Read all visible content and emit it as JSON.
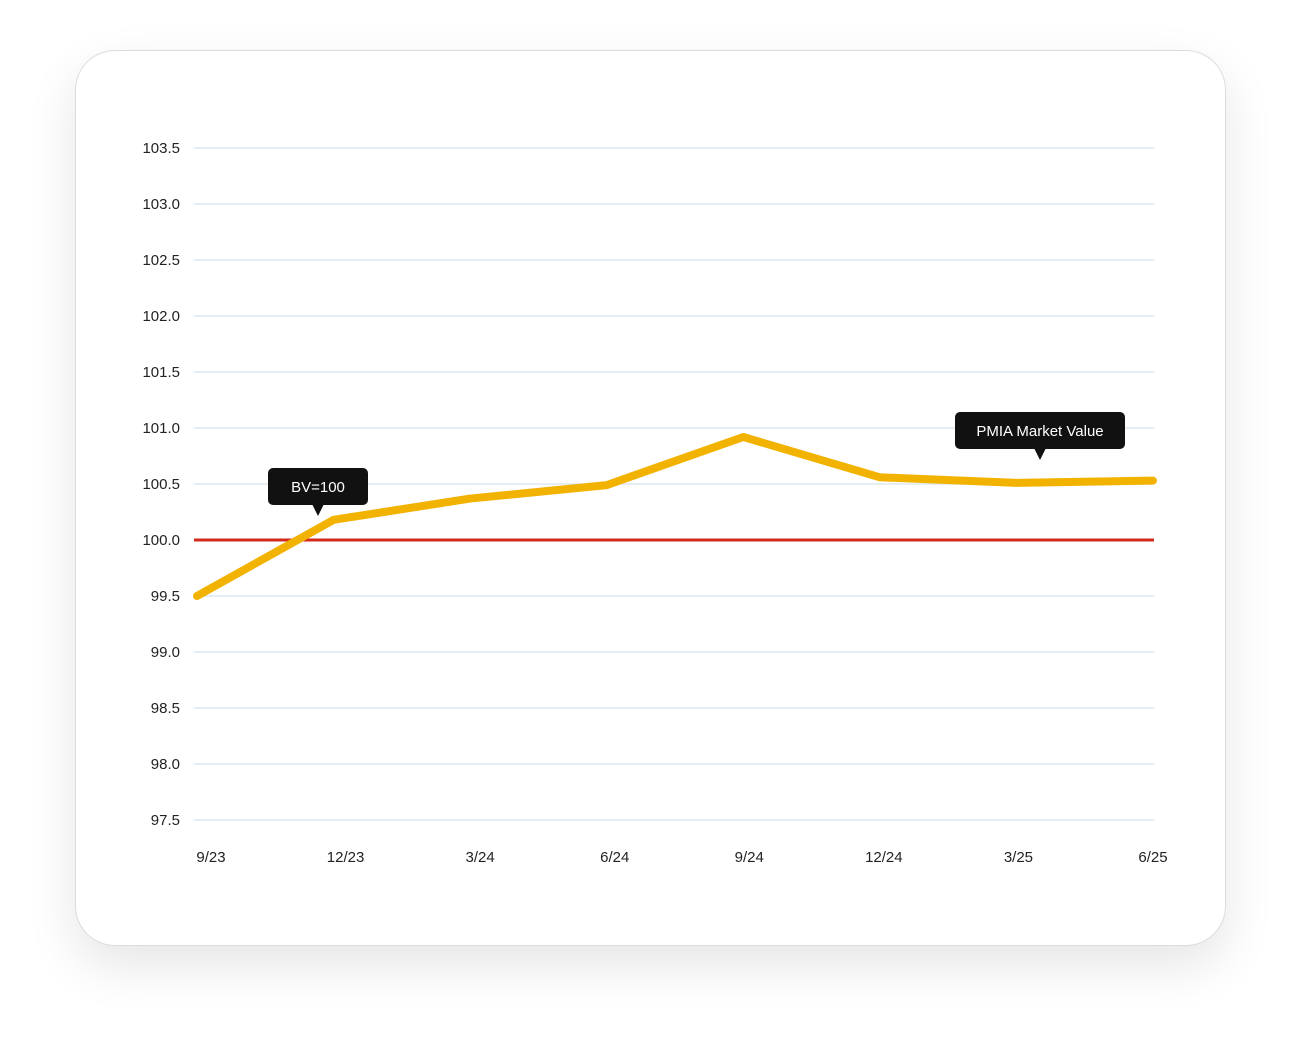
{
  "chart_data": {
    "type": "line",
    "title": "",
    "xlabel": "",
    "ylabel": "",
    "categories": [
      "9/23",
      "12/23",
      "3/24",
      "6/24",
      "9/24",
      "12/24",
      "3/25",
      "6/25"
    ],
    "series": [
      {
        "name": "PMIA Market Value",
        "values": [
          99.5,
          100.18,
          100.37,
          100.49,
          100.92,
          100.56,
          100.51,
          100.53
        ],
        "color": "#F2B300"
      }
    ],
    "reference_line": {
      "label": "BV=100",
      "value": 100.0,
      "color": "#D42A1E"
    },
    "ylim": [
      97.5,
      103.5
    ],
    "yticks": [
      "97.5",
      "98.0",
      "98.5",
      "99.0",
      "99.5",
      "100.0",
      "100.5",
      "101.0",
      "101.5",
      "102.0",
      "102.5",
      "103.0",
      "103.5"
    ],
    "grid": true,
    "grid_color": "#DDE8F0"
  }
}
